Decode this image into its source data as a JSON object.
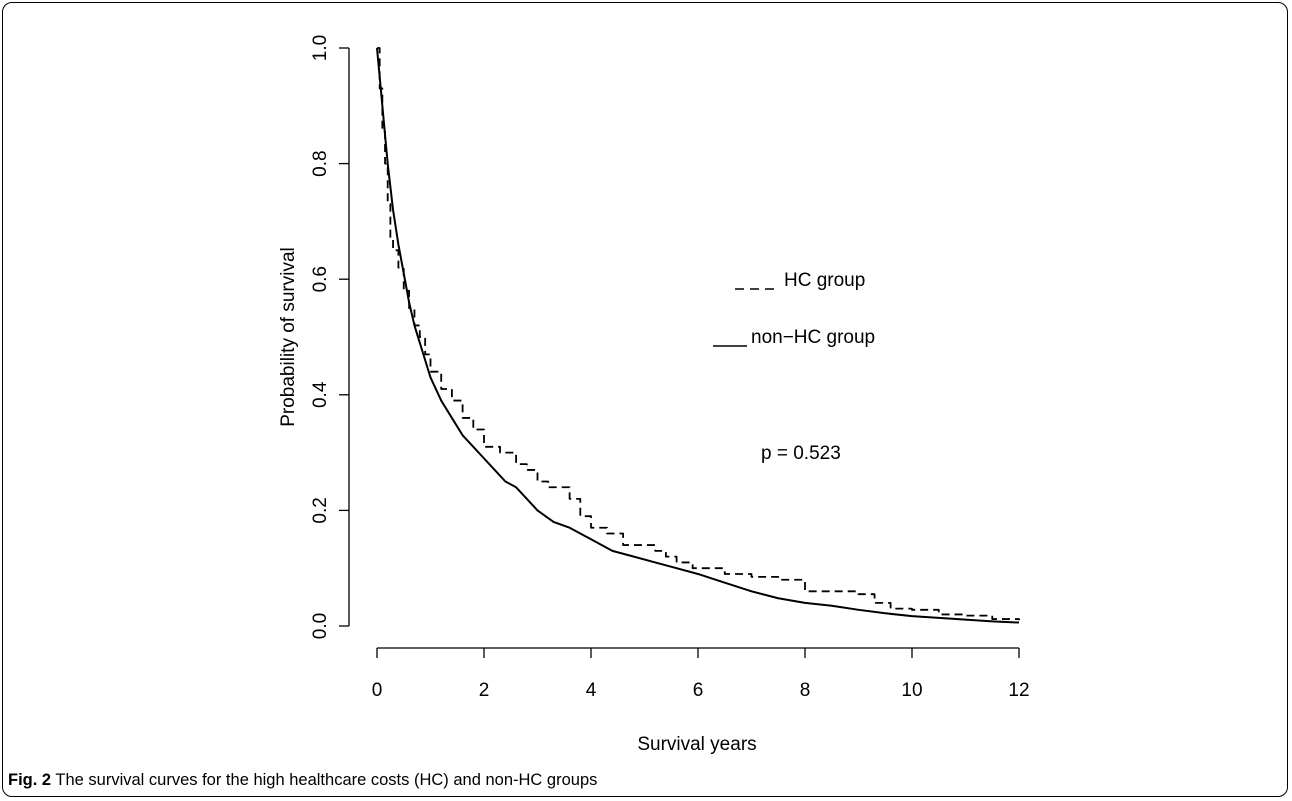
{
  "figure": {
    "caption_label": "Fig. 2",
    "caption_text": " The survival curves for the high healthcare costs (HC) and non-HC groups"
  },
  "chart_data": {
    "type": "line",
    "xlabel": "Survival years",
    "ylabel": "Probability of survival",
    "xlim": [
      0,
      12
    ],
    "ylim": [
      0,
      1
    ],
    "x_ticks": [
      "0",
      "2",
      "4",
      "6",
      "8",
      "10",
      "12"
    ],
    "y_ticks": [
      "0.0",
      "0.2",
      "0.4",
      "0.6",
      "0.8",
      "1.0"
    ],
    "grid": false,
    "legend_placement": "center-right",
    "annotation": "p = 0.523",
    "series": [
      {
        "name": "HC group",
        "legend_text": "HC group",
        "style": "dashed",
        "step": true,
        "x": [
          0,
          0.05,
          0.1,
          0.15,
          0.2,
          0.25,
          0.3,
          0.4,
          0.5,
          0.6,
          0.7,
          0.8,
          0.9,
          1.0,
          1.2,
          1.4,
          1.6,
          1.8,
          2.0,
          2.3,
          2.6,
          2.8,
          3.0,
          3.2,
          3.4,
          3.6,
          3.8,
          4.0,
          4.3,
          4.6,
          5.0,
          5.2,
          5.4,
          5.6,
          5.9,
          6.0,
          6.5,
          7.0,
          7.5,
          8.0,
          8.5,
          9.0,
          9.3,
          9.6,
          10.0,
          10.5,
          11.0,
          11.5,
          12.0
        ],
        "y": [
          1.0,
          0.93,
          0.86,
          0.8,
          0.73,
          0.67,
          0.65,
          0.62,
          0.58,
          0.55,
          0.52,
          0.5,
          0.47,
          0.44,
          0.41,
          0.39,
          0.36,
          0.34,
          0.31,
          0.3,
          0.28,
          0.27,
          0.25,
          0.24,
          0.24,
          0.22,
          0.19,
          0.17,
          0.16,
          0.14,
          0.14,
          0.13,
          0.12,
          0.11,
          0.1,
          0.1,
          0.09,
          0.085,
          0.08,
          0.06,
          0.06,
          0.055,
          0.04,
          0.03,
          0.028,
          0.02,
          0.018,
          0.012,
          0.01
        ]
      },
      {
        "name": "non−HC group",
        "legend_text": "non−HC group",
        "style": "solid",
        "step": false,
        "x": [
          0,
          0.1,
          0.2,
          0.3,
          0.4,
          0.5,
          0.6,
          0.7,
          0.8,
          0.9,
          1.0,
          1.2,
          1.4,
          1.6,
          1.8,
          2.0,
          2.2,
          2.4,
          2.6,
          2.8,
          3.0,
          3.3,
          3.6,
          4.0,
          4.4,
          4.8,
          5.2,
          5.6,
          6.0,
          6.5,
          7.0,
          7.5,
          8.0,
          8.5,
          9.0,
          9.5,
          10.0,
          10.5,
          11.0,
          11.5,
          12.0
        ],
        "y": [
          1.0,
          0.9,
          0.8,
          0.72,
          0.66,
          0.61,
          0.56,
          0.52,
          0.49,
          0.46,
          0.43,
          0.39,
          0.36,
          0.33,
          0.31,
          0.29,
          0.27,
          0.25,
          0.24,
          0.22,
          0.2,
          0.18,
          0.17,
          0.15,
          0.13,
          0.12,
          0.11,
          0.1,
          0.09,
          0.075,
          0.06,
          0.048,
          0.04,
          0.035,
          0.028,
          0.022,
          0.017,
          0.014,
          0.011,
          0.008,
          0.006
        ]
      }
    ]
  }
}
